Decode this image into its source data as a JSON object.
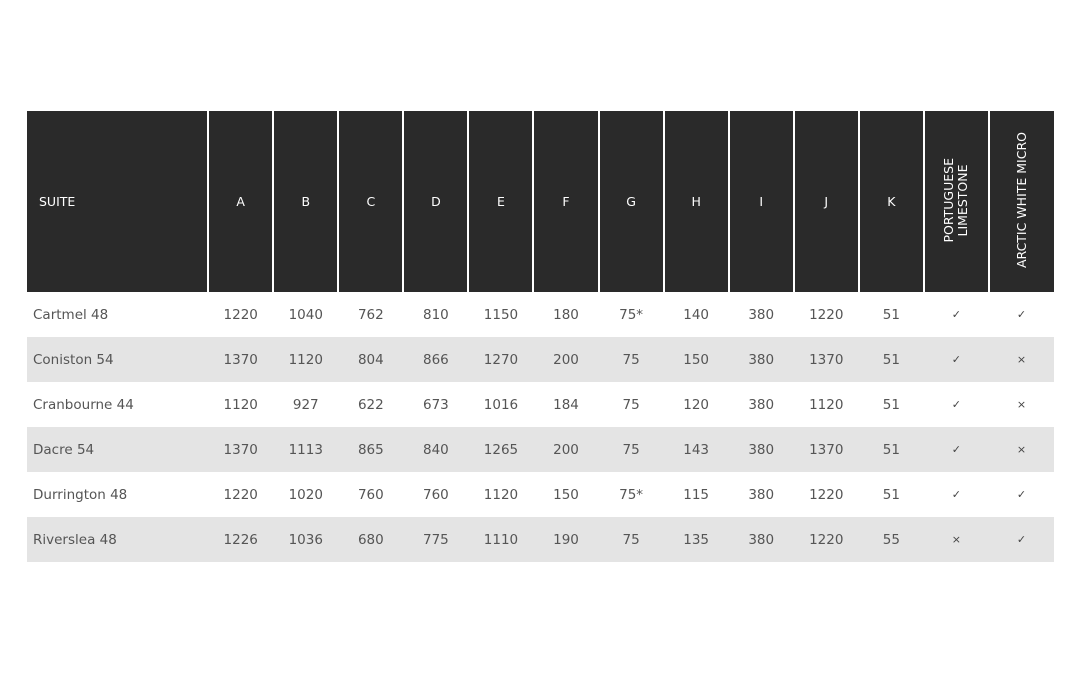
{
  "table": {
    "headers": [
      "SUITE",
      "A",
      "B",
      "C",
      "D",
      "E",
      "F",
      "G",
      "H",
      "I",
      "J",
      "K",
      "PORTUGUESE\nLIMESTONE",
      "ARCTIC WHITE MICRO"
    ],
    "rows": [
      [
        "Cartmel 48",
        "1220",
        "1040",
        "762",
        "810",
        "1150",
        "180",
        "75*",
        "140",
        "380",
        "1220",
        "51",
        "✓",
        "✓"
      ],
      [
        "Coniston 54",
        "1370",
        "1120",
        "804",
        "866",
        "1270",
        "200",
        "75",
        "150",
        "380",
        "1370",
        "51",
        "✓",
        "×"
      ],
      [
        "Cranbourne 44",
        "1120",
        "927",
        "622",
        "673",
        "1016",
        "184",
        "75",
        "120",
        "380",
        "1120",
        "51",
        "✓",
        "×"
      ],
      [
        "Dacre 54",
        "1370",
        "1113",
        "865",
        "840",
        "1265",
        "200",
        "75",
        "143",
        "380",
        "1370",
        "51",
        "✓",
        "×"
      ],
      [
        "Durrington 48",
        "1220",
        "1020",
        "760",
        "760",
        "1120",
        "150",
        "75*",
        "115",
        "380",
        "1220",
        "51",
        "✓",
        "✓"
      ],
      [
        "Riverslea 48",
        "1226",
        "1036",
        "680",
        "775",
        "1110",
        "190",
        "75",
        "135",
        "380",
        "1220",
        "55",
        "×",
        "✓"
      ]
    ]
  },
  "colors": {
    "header_bg": "#2a2a2a",
    "stripe_bg": "#e4e4e4",
    "text": "#555555"
  }
}
